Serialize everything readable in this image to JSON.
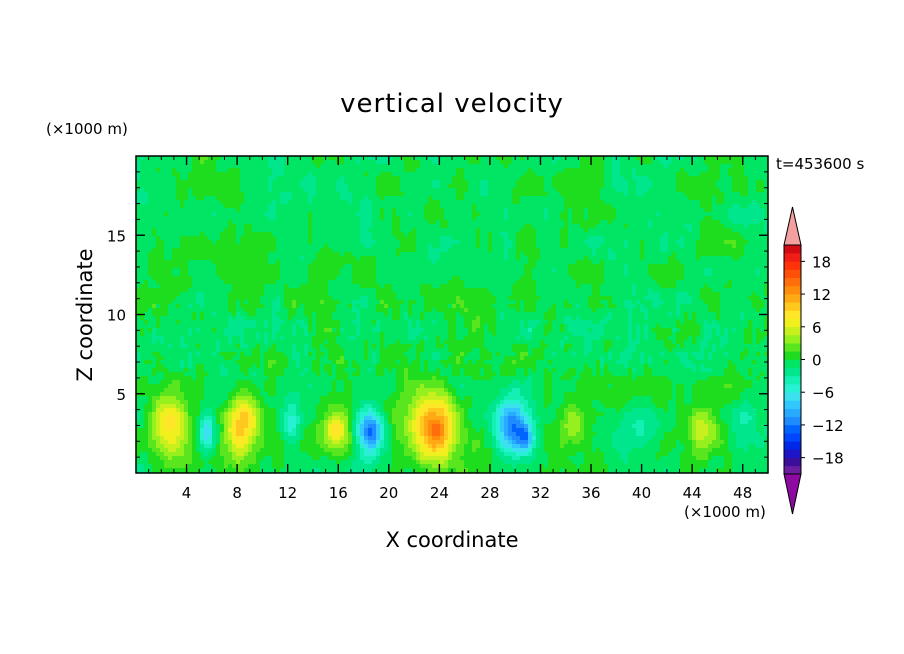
{
  "chart_data": {
    "type": "heatmap",
    "title": "vertical velocity",
    "xlabel": "X coordinate",
    "ylabel": "Z coordinate",
    "x_unit": "(×1000 m)",
    "y_unit": "(×1000 m)",
    "time_label": "t=453600 s",
    "xlim": [
      0,
      50
    ],
    "ylim": [
      0,
      20
    ],
    "x_ticks": [
      4,
      8,
      12,
      16,
      20,
      24,
      28,
      32,
      36,
      40,
      44,
      48
    ],
    "y_ticks": [
      5,
      10,
      15
    ],
    "colorbar": {
      "ticks": [
        18,
        12,
        6,
        0,
        -6,
        -12,
        -18
      ],
      "labels": [
        "18",
        "12",
        "6",
        "0",
        "−6",
        "−12",
        "−18"
      ],
      "levels": [
        -21,
        -19.5,
        -18,
        -16.5,
        -15,
        -13.5,
        -12,
        -10.5,
        -9,
        -7.5,
        -6,
        -4.5,
        -3,
        -1.5,
        0,
        1.5,
        3,
        4.5,
        6,
        7.5,
        9,
        10.5,
        12,
        13.5,
        15,
        16.5,
        18,
        19.5,
        21
      ],
      "colors": [
        "#6a1ea0",
        "#3c0f9a",
        "#1e14c8",
        "#0028e6",
        "#0046ff",
        "#0064ff",
        "#1e8cff",
        "#28aaff",
        "#32c8ff",
        "#3ce1f0",
        "#28f0d2",
        "#14f0b4",
        "#00e68c",
        "#00e664",
        "#1edc1e",
        "#5ae61e",
        "#96f01e",
        "#c8f01e",
        "#f0f01e",
        "#ffe628",
        "#ffc81e",
        "#ffaa14",
        "#ff8c0a",
        "#ff6e0a",
        "#ff500a",
        "#ff320a",
        "#f01e14",
        "#d20a14"
      ],
      "under_color": "#8c0aa0",
      "over_color": "#f5a0a0"
    },
    "features": [
      {
        "x": 2.5,
        "z": 3.0,
        "w": 1.4,
        "h": 2.0,
        "a": 9
      },
      {
        "x": 5.6,
        "z": 2.6,
        "w": 0.6,
        "h": 1.3,
        "a": -8
      },
      {
        "x": 8.4,
        "z": 3.0,
        "w": 1.2,
        "h": 2.0,
        "a": 10
      },
      {
        "x": 12.3,
        "z": 3.0,
        "w": 0.8,
        "h": 1.4,
        "a": -6
      },
      {
        "x": 15.8,
        "z": 2.8,
        "w": 1.0,
        "h": 1.3,
        "a": 7
      },
      {
        "x": 18.6,
        "z": 2.5,
        "w": 1.1,
        "h": 1.3,
        "a": -12
      },
      {
        "x": 23.6,
        "z": 2.8,
        "w": 2.1,
        "h": 2.1,
        "a": 13
      },
      {
        "x": 29.6,
        "z": 3.2,
        "w": 1.2,
        "h": 1.6,
        "a": -11
      },
      {
        "x": 30.8,
        "z": 2.2,
        "w": 0.7,
        "h": 0.9,
        "a": -8
      },
      {
        "x": 34.5,
        "z": 2.6,
        "w": 0.9,
        "h": 1.4,
        "a": 4
      },
      {
        "x": 39.5,
        "z": 3.0,
        "w": 1.8,
        "h": 1.2,
        "a": -3
      },
      {
        "x": 44.8,
        "z": 2.7,
        "w": 1.5,
        "h": 1.5,
        "a": 6
      },
      {
        "x": 48.6,
        "z": 3.0,
        "w": 1.2,
        "h": 1.6,
        "a": -3
      }
    ]
  }
}
